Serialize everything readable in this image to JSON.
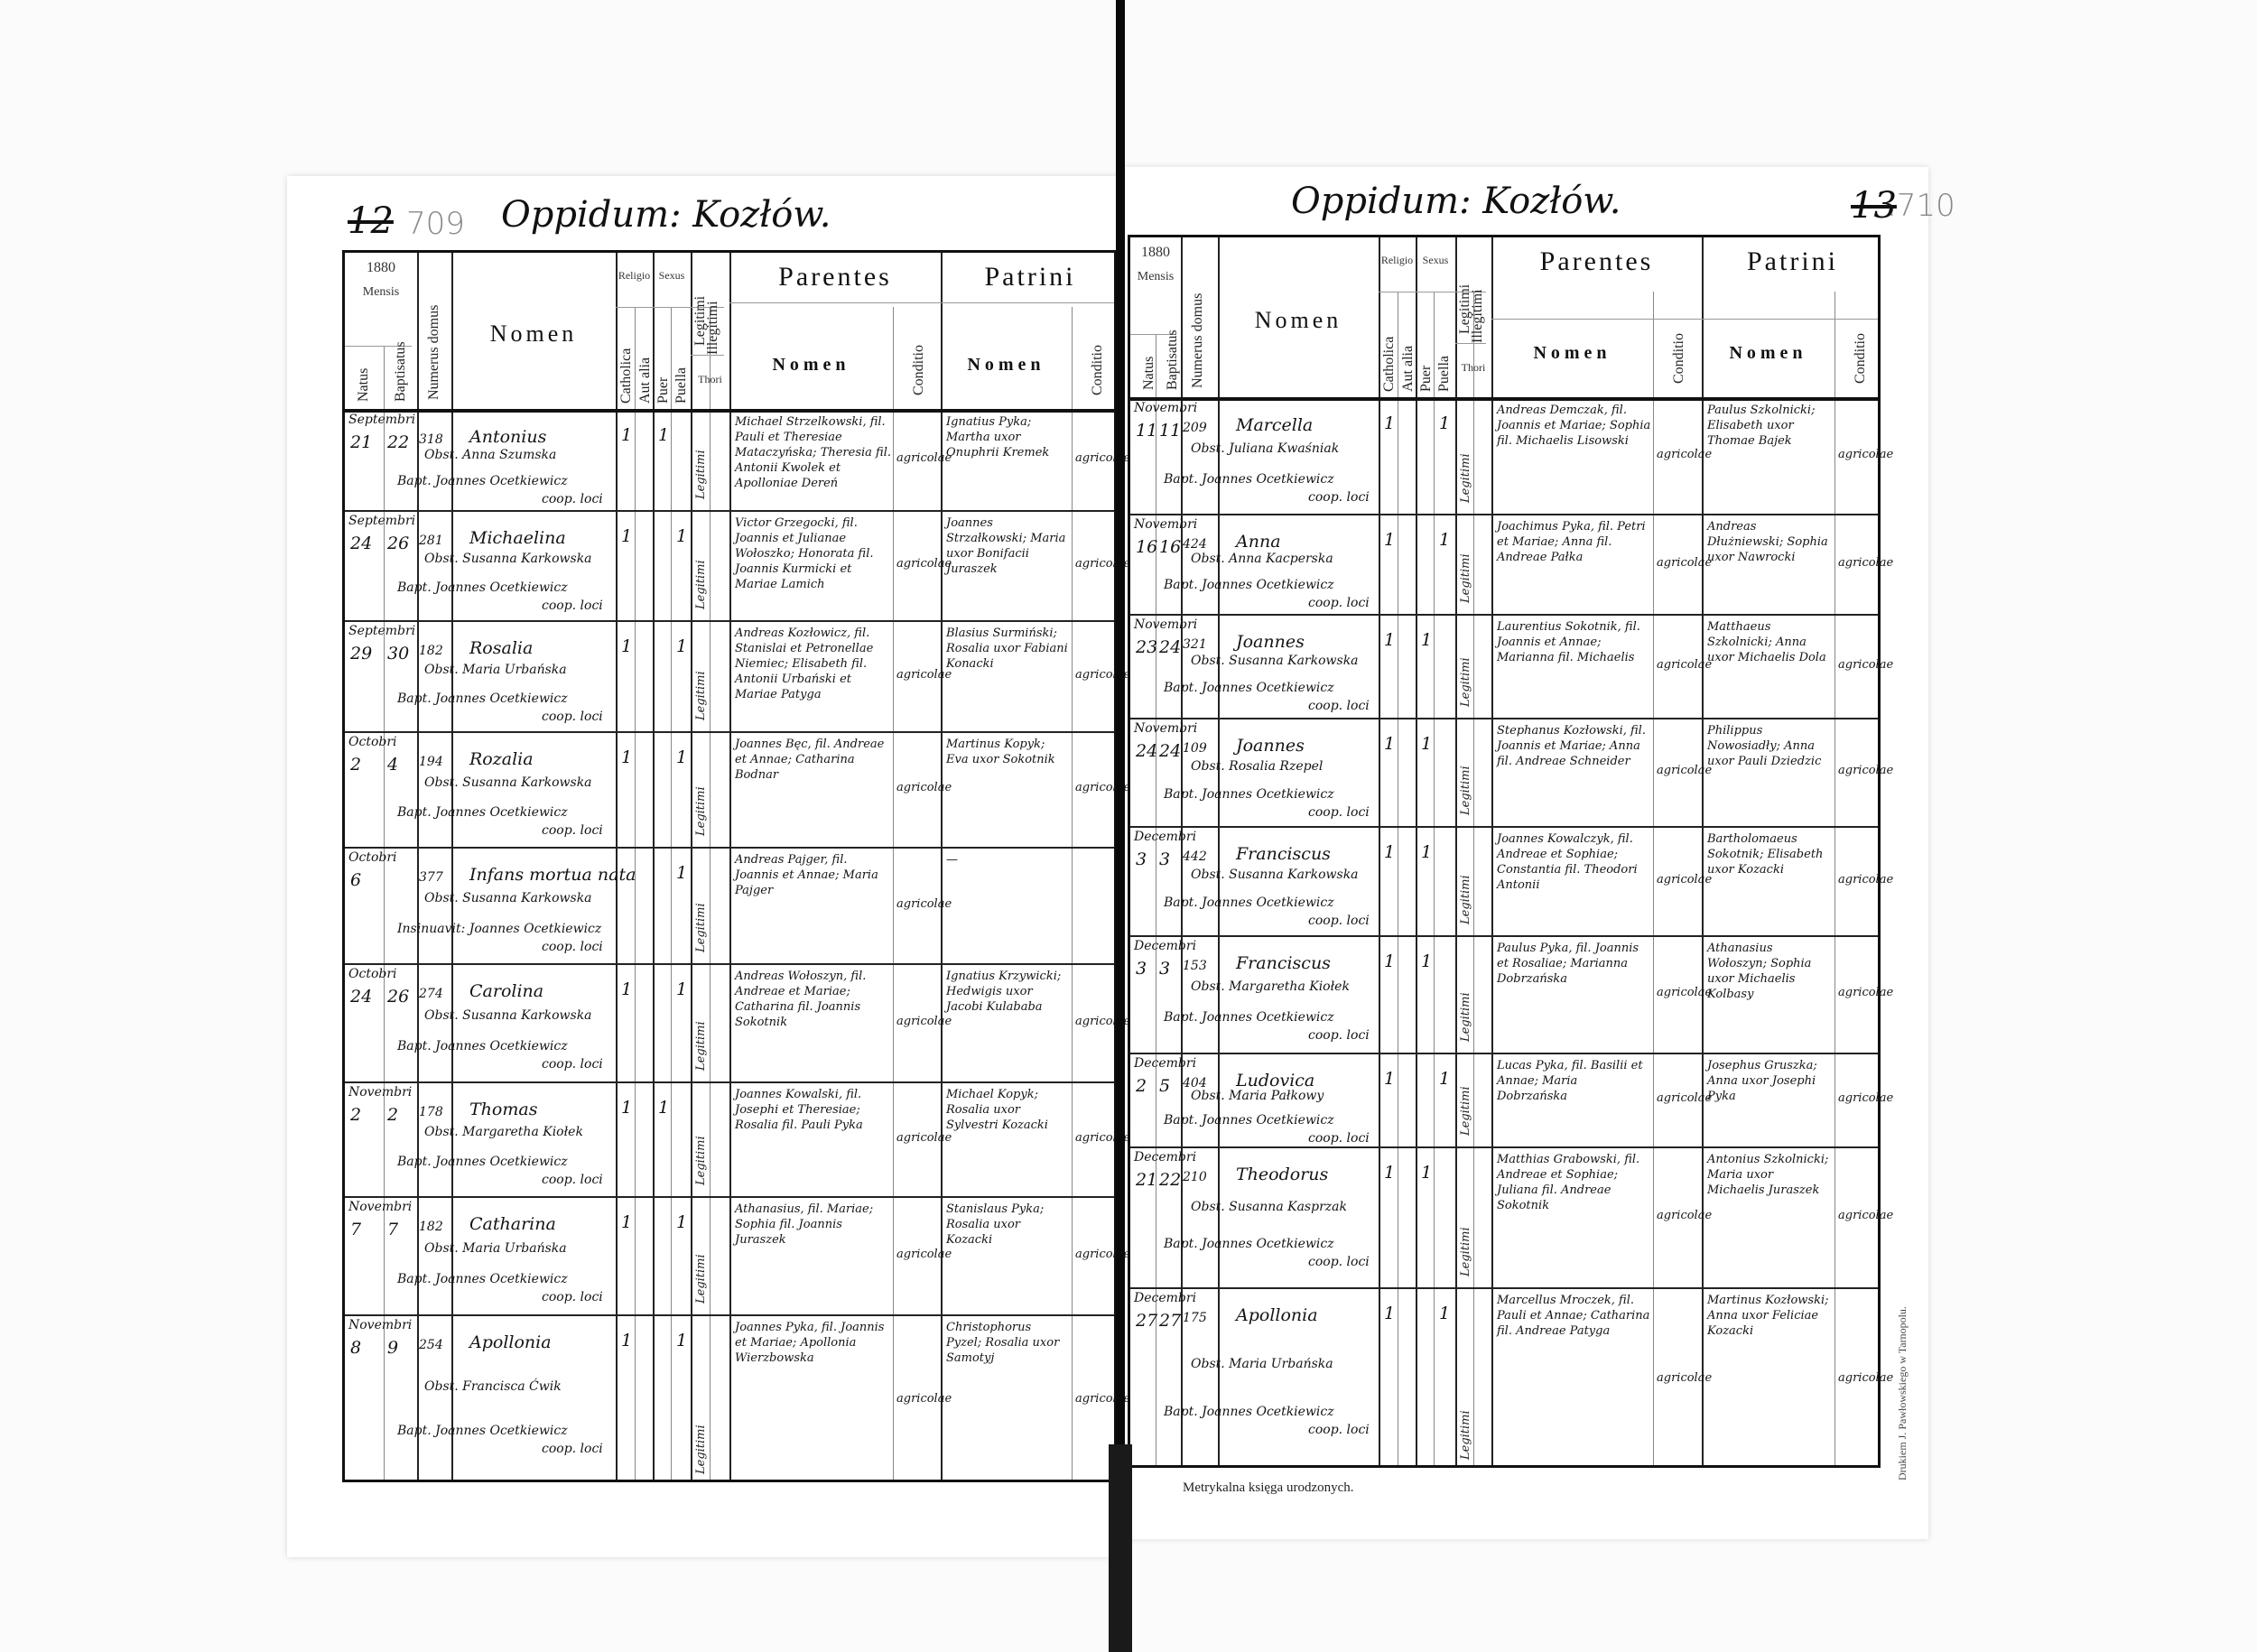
{
  "header_labels": {
    "year": "1880",
    "mensis": "Mensis",
    "natus": "Natus",
    "baptisatus": "Baptisatus",
    "numerus_domus": "Numerus domus",
    "nomen": "Nomen",
    "religio": "Religio",
    "catholica": "Catholica",
    "aut_alia": "Aut alia",
    "sexus": "Sexus",
    "puer": "Puer",
    "puella": "Puella",
    "legitimi": "Legitimi",
    "illegitimi": "Illegitimi",
    "thori": "Thori",
    "parentes": "Parentes",
    "patrini": "Patrini",
    "sub_nomen": "Nomen",
    "conditio": "Conditio"
  },
  "left_page": {
    "page_number_old": "12",
    "page_number": "709",
    "title": "Oppidum: Kozłów.",
    "rows": [
      {
        "month": "Septembri",
        "natus": "21",
        "baptisatus": "22",
        "domus": "318",
        "name": "Antonius",
        "obst": "Obst. Anna Szumska",
        "bapt": "Bapt. Joannes Ocetkiewicz",
        "bapt2": "coop. loci",
        "catholica": "1",
        "sex": "puer",
        "mark": "1",
        "legit": "Legitimi",
        "parents": "Michael Strzelkowski, fil. Pauli et Theresiae Mataczyńska; Theresia fil. Antonii Kwolek et Apolloniae Dereń",
        "parents_cond": "agricolae",
        "patrini": "Ignatius Pyka; Martha uxor Onuphrii Kremek",
        "patrini_cond": "agricolae"
      },
      {
        "month": "Septembri",
        "natus": "24",
        "baptisatus": "26",
        "domus": "281",
        "name": "Michaelina",
        "obst": "Obst. Susanna Karkowska",
        "bapt": "Bapt. Joannes Ocetkiewicz",
        "bapt2": "coop. loci",
        "catholica": "1",
        "sex": "puella",
        "mark": "1",
        "legit": "Legitimi",
        "parents": "Victor Grzegocki, fil. Joannis et Julianae Wołoszko; Honorata fil. Joannis Kurmicki et Mariae Lamich",
        "parents_cond": "agricolae",
        "patrini": "Joannes Strzałkowski; Maria uxor Bonifacii Juraszek",
        "patrini_cond": "agricolae"
      },
      {
        "month": "Septembri",
        "natus": "29",
        "baptisatus": "30",
        "domus": "182",
        "name": "Rosalia",
        "obst": "Obst. Maria Urbańska",
        "bapt": "Bapt. Joannes Ocetkiewicz",
        "bapt2": "coop. loci",
        "catholica": "1",
        "sex": "puella",
        "mark": "1",
        "legit": "Legitimi",
        "parents": "Andreas Kozłowicz, fil. Stanislai et Petronellae Niemiec; Elisabeth fil. Antonii Urbański et Mariae Patyga",
        "parents_cond": "agricolae",
        "patrini": "Blasius Surmiński; Rosalia uxor Fabiani Konacki",
        "patrini_cond": "agricolae"
      },
      {
        "month": "Octobri",
        "natus": "2",
        "baptisatus": "4",
        "domus": "194",
        "name": "Rozalia",
        "obst": "Obst. Susanna Karkowska",
        "bapt": "Bapt. Joannes Ocetkiewicz",
        "bapt2": "coop. loci",
        "catholica": "1",
        "sex": "puella",
        "mark": "1",
        "legit": "Legitimi",
        "parents": "Joannes Bęc, fil. Andreae et Annae; Catharina Bodnar",
        "parents_cond": "agricolae",
        "patrini": "Martinus Kopyk; Eva uxor Sokotnik",
        "patrini_cond": "agricolae"
      },
      {
        "month": "Octobri",
        "natus": "6",
        "baptisatus": "",
        "domus": "377",
        "name": "Infans mortua nata",
        "obst": "Obst. Susanna Karkowska",
        "bapt": "Insinuavit: Joannes Ocetkiewicz",
        "bapt2": "coop. loci",
        "catholica": "",
        "sex": "puella",
        "mark": "1",
        "legit": "Legitimi",
        "parents": "Andreas Pajger, fil. Joannis et Annae; Maria Pajger",
        "parents_cond": "agricolae",
        "patrini": "—",
        "patrini_cond": ""
      },
      {
        "month": "Octobri",
        "natus": "24",
        "baptisatus": "26",
        "domus": "274",
        "name": "Carolina",
        "obst": "Obst. Susanna Karkowska",
        "bapt": "Bapt. Joannes Ocetkiewicz",
        "bapt2": "coop. loci",
        "catholica": "1",
        "sex": "puella",
        "mark": "1",
        "legit": "Legitimi",
        "parents": "Andreas Wołoszyn, fil. Andreae et Mariae; Catharina fil. Joannis Sokotnik",
        "parents_cond": "agricolae",
        "patrini": "Ignatius Krzywicki; Hedwigis uxor Jacobi Kulababa",
        "patrini_cond": "agricolae"
      },
      {
        "month": "Novembri",
        "natus": "2",
        "baptisatus": "2",
        "domus": "178",
        "name": "Thomas",
        "obst": "Obst. Margaretha Kiołek",
        "bapt": "Bapt. Joannes Ocetkiewicz",
        "bapt2": "coop. loci",
        "catholica": "1",
        "sex": "puer",
        "mark": "1",
        "legit": "Legitimi",
        "parents": "Joannes Kowalski, fil. Josephi et Theresiae; Rosalia fil. Pauli Pyka",
        "parents_cond": "agricolae",
        "patrini": "Michael Kopyk; Rosalia uxor Sylvestri Kozacki",
        "patrini_cond": "agricolae"
      },
      {
        "month": "Novembri",
        "natus": "7",
        "baptisatus": "7",
        "domus": "182",
        "name": "Catharina",
        "obst": "Obst. Maria Urbańska",
        "bapt": "Bapt. Joannes Ocetkiewicz",
        "bapt2": "coop. loci",
        "catholica": "1",
        "sex": "puella",
        "mark": "1",
        "legit": "Legitimi",
        "parents": "Athanasius, fil. Mariae; Sophia fil. Joannis Juraszek",
        "parents_cond": "agricolae",
        "patrini": "Stanislaus Pyka; Rosalia uxor Kozacki",
        "patrini_cond": "agricolae"
      },
      {
        "month": "Novembri",
        "natus": "8",
        "baptisatus": "9",
        "domus": "254",
        "name": "Apollonia",
        "obst": "Obst. Francisca Ćwik",
        "bapt": "Bapt. Joannes Ocetkiewicz",
        "bapt2": "coop. loci",
        "catholica": "1",
        "sex": "puella",
        "mark": "1",
        "legit": "Legitimi",
        "parents": "Joannes Pyka, fil. Joannis et Mariae; Apollonia Wierzbowska",
        "parents_cond": "agricolae",
        "patrini": "Christophorus Pyzel; Rosalia uxor Samotyj",
        "patrini_cond": "agricolae"
      }
    ]
  },
  "right_page": {
    "page_number_old": "13",
    "page_number": ".710",
    "title": "Oppidum: Kozłów.",
    "rows": [
      {
        "month": "Novembri",
        "natus": "11",
        "baptisatus": "11",
        "domus": "209",
        "name": "Marcella",
        "obst": "Obst. Juliana Kwaśniak",
        "bapt": "Bapt. Joannes Ocetkiewicz",
        "bapt2": "coop. loci",
        "catholica": "1",
        "sex": "puella",
        "mark": "1",
        "legit": "Legitimi",
        "parents": "Andreas Demczak, fil. Joannis et Mariae; Sophia fil. Michaelis Lisowski",
        "parents_cond": "agricolae",
        "patrini": "Paulus Szkolnicki; Elisabeth uxor Thomae Bajek",
        "patrini_cond": "agricolae"
      },
      {
        "month": "Novembri",
        "natus": "16",
        "baptisatus": "16",
        "domus": "424",
        "name": "Anna",
        "obst": "Obst. Anna Kacperska",
        "bapt": "Bapt. Joannes Ocetkiewicz",
        "bapt2": "coop. loci",
        "catholica": "1",
        "sex": "puella",
        "mark": "1",
        "legit": "Legitimi",
        "parents": "Joachimus Pyka, fil. Petri et Mariae; Anna fil. Andreae Pałka",
        "parents_cond": "agricolae",
        "patrini": "Andreas Dłużniewski; Sophia uxor Nawrocki",
        "patrini_cond": "agricolae"
      },
      {
        "month": "Novembri",
        "natus": "23",
        "baptisatus": "24",
        "domus": "321",
        "name": "Joannes",
        "obst": "Obst. Susanna Karkowska",
        "bapt": "Bapt. Joannes Ocetkiewicz",
        "bapt2": "coop. loci",
        "catholica": "1",
        "sex": "puer",
        "mark": "1",
        "legit": "Legitimi",
        "parents": "Laurentius Sokotnik, fil. Joannis et Annae; Marianna fil. Michaelis",
        "parents_cond": "agricolae",
        "patrini": "Matthaeus Szkolnicki; Anna uxor Michaelis Dola",
        "patrini_cond": "agricolae"
      },
      {
        "month": "Novembri",
        "natus": "24",
        "baptisatus": "24",
        "domus": "109",
        "name": "Joannes",
        "obst": "Obst. Rosalia Rzepel",
        "bapt": "Bapt. Joannes Ocetkiewicz",
        "bapt2": "coop. loci",
        "catholica": "1",
        "sex": "puer",
        "mark": "1",
        "legit": "Legitimi",
        "parents": "Stephanus Kozłowski, fil. Joannis et Mariae; Anna fil. Andreae Schneider",
        "parents_cond": "agricolae",
        "patrini": "Philippus Nowosiadły; Anna uxor Pauli Dziedzic",
        "patrini_cond": "agricolae"
      },
      {
        "month": "Decembri",
        "natus": "3",
        "baptisatus": "3",
        "domus": "442",
        "name": "Franciscus",
        "obst": "Obst. Susanna Karkowska",
        "bapt": "Bapt. Joannes Ocetkiewicz",
        "bapt2": "coop. loci",
        "catholica": "1",
        "sex": "puer",
        "mark": "1",
        "legit": "Legitimi",
        "parents": "Joannes Kowalczyk, fil. Andreae et Sophiae; Constantia fil. Theodori Antonii",
        "parents_cond": "agricolae",
        "patrini": "Bartholomaeus Sokotnik; Elisabeth uxor Kozacki",
        "patrini_cond": "agricolae"
      },
      {
        "month": "Decembri",
        "natus": "3",
        "baptisatus": "3",
        "domus": "153",
        "name": "Franciscus",
        "obst": "Obst. Margaretha Kiołek",
        "bapt": "Bapt. Joannes Ocetkiewicz",
        "bapt2": "coop. loci",
        "catholica": "1",
        "sex": "puer",
        "mark": "1",
        "legit": "Legitimi",
        "parents": "Paulus Pyka, fil. Joannis et Rosaliae; Marianna Dobrzańska",
        "parents_cond": "agricolae",
        "patrini": "Athanasius Wołoszyn; Sophia uxor Michaelis Kolbasy",
        "patrini_cond": "agricolae"
      },
      {
        "month": "Decembri",
        "natus": "2",
        "baptisatus": "5",
        "domus": "404",
        "name": "Ludovica",
        "obst": "Obst. Maria Pałkowy",
        "bapt": "Bapt. Joannes Ocetkiewicz",
        "bapt2": "coop. loci",
        "catholica": "1",
        "sex": "puella",
        "mark": "1",
        "legit": "Legitimi",
        "parents": "Lucas Pyka, fil. Basilii et Annae; Maria Dobrzańska",
        "parents_cond": "agricolae",
        "patrini": "Josephus Gruszka; Anna uxor Josephi Pyka",
        "patrini_cond": "agricolae"
      },
      {
        "month": "Decembri",
        "natus": "21",
        "baptisatus": "22",
        "domus": "210",
        "name": "Theodorus",
        "obst": "Obst. Susanna Kasprzak",
        "bapt": "Bapt. Joannes Ocetkiewicz",
        "bapt2": "coop. loci",
        "catholica": "1",
        "sex": "puer",
        "mark": "1",
        "legit": "Legitimi",
        "parents": "Matthias Grabowski, fil. Andreae et Sophiae; Juliana fil. Andreae Sokotnik",
        "parents_cond": "agricolae",
        "patrini": "Antonius Szkolnicki; Maria uxor Michaelis Juraszek",
        "patrini_cond": "agricolae"
      },
      {
        "month": "Decembri",
        "natus": "27",
        "baptisatus": "27",
        "domus": "175",
        "name": "Apollonia",
        "obst": "Obst. Maria Urbańska",
        "bapt": "Bapt. Joannes Ocetkiewicz",
        "bapt2": "coop. loci",
        "catholica": "1",
        "sex": "puella",
        "mark": "1",
        "legit": "Legitimi",
        "parents": "Marcellus Mroczek, fil. Pauli et Annae; Catharina fil. Andreae Patyga",
        "parents_cond": "agricolae",
        "patrini": "Martinus Kozłowski; Anna uxor Feliciae Kozacki",
        "patrini_cond": "agricolae"
      }
    ]
  },
  "footer": {
    "book_title": "Metrykalna księga urodzonych.",
    "imprint": "Drukiem J. Pawłowskiego w Tarnopolu."
  }
}
